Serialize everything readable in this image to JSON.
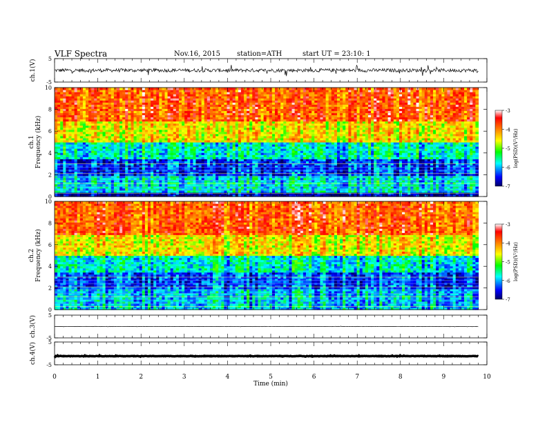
{
  "header": {
    "title": "VLF Spectra",
    "date": "Nov.16, 2015",
    "station": "station=ATH",
    "start_ut": "start UT =   23:10: 1"
  },
  "chart_data": [
    {
      "type": "line",
      "ylabel": "ch.1(V)",
      "ylim": [
        -5,
        5
      ],
      "yticks": [
        "5",
        "-5"
      ],
      "series": [
        {
          "mean": 0,
          "amplitude_range": [
            -2.5,
            2.5
          ]
        }
      ],
      "line_color": "#000000"
    },
    {
      "type": "heatmap",
      "ylabel": "ch.1",
      "ylabel2": "Frequency (kHz)",
      "ylim": [
        0,
        10
      ],
      "yticks": [
        "0",
        "2",
        "4",
        "6",
        "8",
        "10"
      ],
      "colorbar": {
        "label": "log(PSD)(V²/Hz)",
        "range": [
          -7,
          -3
        ],
        "ticks": [
          "-3",
          "-4",
          "-5",
          "-6",
          "-7"
        ],
        "colors": [
          "#000066",
          "#0000ff",
          "#00ffff",
          "#00ff00",
          "#ffff00",
          "#ff8000",
          "#ff0000",
          "#ffffff"
        ]
      },
      "levels_by_frequency": [
        {
          "freq_khz": [
            0,
            0.3
          ],
          "log_psd": -6.8
        },
        {
          "freq_khz": [
            0.3,
            2
          ],
          "log_psd": -5.8
        },
        {
          "freq_khz": [
            2,
            3.5
          ],
          "log_psd": -6.4
        },
        {
          "freq_khz": [
            3.5,
            5
          ],
          "log_psd": -5.7
        },
        {
          "freq_khz": [
            5,
            7
          ],
          "log_psd": -4.5
        },
        {
          "freq_khz": [
            7,
            10
          ],
          "log_psd": -3.8
        }
      ]
    },
    {
      "type": "heatmap",
      "ylabel": "ch.2",
      "ylabel2": "Frequency (kHz)",
      "ylim": [
        0,
        10
      ],
      "yticks": [
        "0",
        "2",
        "4",
        "6",
        "8",
        "10"
      ],
      "colorbar": {
        "label": "log(PSD)(V²/Hz)",
        "range": [
          -7,
          -3
        ],
        "ticks": [
          "-3",
          "-4",
          "-5",
          "-6",
          "-7"
        ]
      },
      "levels_by_frequency": [
        {
          "freq_khz": [
            0,
            2
          ],
          "log_psd": -5.9
        },
        {
          "freq_khz": [
            2,
            3.5
          ],
          "log_psd": -6.3
        },
        {
          "freq_khz": [
            3.5,
            5
          ],
          "log_psd": -5.7
        },
        {
          "freq_khz": [
            5,
            7
          ],
          "log_psd": -4.5
        },
        {
          "freq_khz": [
            7,
            10
          ],
          "log_psd": -3.8
        }
      ]
    },
    {
      "type": "line",
      "ylabel": "ch.3(V)",
      "ylim": [
        -5,
        5
      ],
      "yticks": [
        "5",
        "-5"
      ],
      "series": [
        {
          "mean": 0,
          "amplitude_range": [
            -0.2,
            0.2
          ]
        }
      ]
    },
    {
      "type": "line",
      "ylabel": "ch.4(V)",
      "ylim": [
        -5,
        5
      ],
      "yticks": [
        "5",
        "-5"
      ],
      "series": [
        {
          "mean": -1.2,
          "amplitude_range": [
            -0.3,
            0.3
          ]
        }
      ]
    }
  ],
  "xaxis": {
    "label": "Time (min)",
    "range": [
      0,
      10
    ],
    "data_end": 9.8,
    "ticks": [
      "0",
      "1",
      "2",
      "3",
      "4",
      "5",
      "6",
      "7",
      "8",
      "9",
      "10"
    ]
  }
}
